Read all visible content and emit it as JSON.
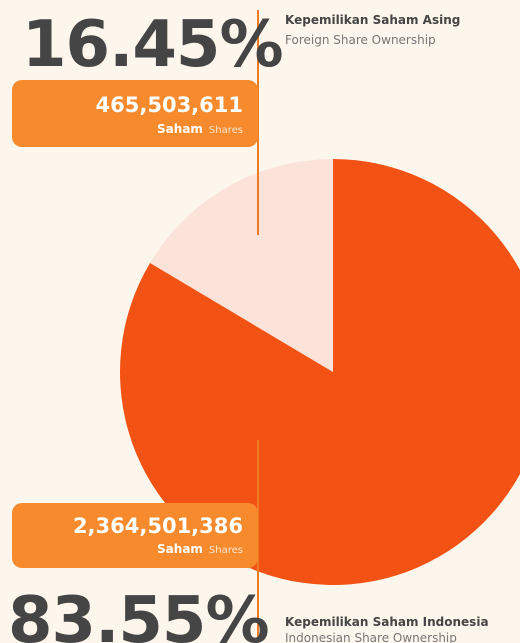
{
  "chart_data": {
    "type": "pie",
    "categories": [
      "Kepemilikan Saham Asing",
      "Kepemilikan Saham Indonesia"
    ],
    "categories_en": [
      "Foreign Share Ownership",
      "Indonesian Share Ownership"
    ],
    "values": [
      16.45,
      83.55
    ],
    "value_labels": [
      "16.45%",
      "83.55%"
    ],
    "shares": [
      "465,503,611",
      "2,364,501,386"
    ],
    "unit": "Saham",
    "unit_en": "Shares",
    "colors": [
      "#fbe3d9",
      "#f25314"
    ]
  }
}
